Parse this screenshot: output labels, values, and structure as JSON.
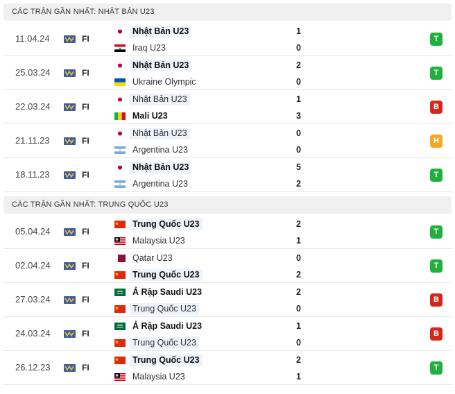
{
  "sections": [
    {
      "title": "CÁC TRẬN GẦN NHẤT: NHẬT BẢN U23",
      "matches": [
        {
          "date": "11.04.24",
          "competition": "FI",
          "home": {
            "name": "Nhật Bản U23",
            "score": 1,
            "highlight": true
          },
          "away": {
            "name": "Iraq U23",
            "score": 0,
            "highlight": false
          },
          "result": {
            "label": "T",
            "color": "#20b13c"
          }
        },
        {
          "date": "25.03.24",
          "competition": "FI",
          "home": {
            "name": "Nhật Bản U23",
            "score": 2,
            "highlight": true
          },
          "away": {
            "name": "Ukraine Olympic",
            "score": 0,
            "highlight": false
          },
          "result": {
            "label": "T",
            "color": "#20b13c"
          }
        },
        {
          "date": "22.03.24",
          "competition": "FI",
          "home": {
            "name": "Nhật Bản U23",
            "score": 1,
            "highlight": true
          },
          "away": {
            "name": "Mali U23",
            "score": 3,
            "highlight": false
          },
          "result": {
            "label": "B",
            "color": "#d6261c"
          }
        },
        {
          "date": "21.11.23",
          "competition": "FI",
          "home": {
            "name": "Nhật Bản U23",
            "score": 0,
            "highlight": true
          },
          "away": {
            "name": "Argentina U23",
            "score": 0,
            "highlight": false
          },
          "result": {
            "label": "H",
            "color": "#f5a623"
          }
        },
        {
          "date": "18.11.23",
          "competition": "FI",
          "home": {
            "name": "Nhật Bản U23",
            "score": 5,
            "highlight": true
          },
          "away": {
            "name": "Argentina U23",
            "score": 2,
            "highlight": false
          },
          "result": {
            "label": "T",
            "color": "#20b13c"
          }
        }
      ]
    },
    {
      "title": "CÁC TRẬN GẦN NHẤT: TRUNG QUỐC U23",
      "matches": [
        {
          "date": "05.04.24",
          "competition": "FI",
          "home": {
            "name": "Trung Quốc U23",
            "score": 2,
            "highlight": true
          },
          "away": {
            "name": "Malaysia U23",
            "score": 1,
            "highlight": false
          },
          "result": {
            "label": "T",
            "color": "#20b13c"
          }
        },
        {
          "date": "02.04.24",
          "competition": "FI",
          "home": {
            "name": "Qatar U23",
            "score": 0,
            "highlight": false
          },
          "away": {
            "name": "Trung Quốc U23",
            "score": 2,
            "highlight": true
          },
          "result": {
            "label": "T",
            "color": "#20b13c"
          }
        },
        {
          "date": "27.03.24",
          "competition": "FI",
          "home": {
            "name": "Ả Rập Saudi U23",
            "score": 2,
            "highlight": false
          },
          "away": {
            "name": "Trung Quốc U23",
            "score": 0,
            "highlight": true
          },
          "result": {
            "label": "B",
            "color": "#d6261c"
          }
        },
        {
          "date": "24.03.24",
          "competition": "FI",
          "home": {
            "name": "Ả Rập Saudi U23",
            "score": 1,
            "highlight": false
          },
          "away": {
            "name": "Trung Quốc U23",
            "score": 0,
            "highlight": true
          },
          "result": {
            "label": "B",
            "color": "#d6261c"
          }
        },
        {
          "date": "26.12.23",
          "competition": "FI",
          "home": {
            "name": "Trung Quốc U23",
            "score": 2,
            "highlight": true
          },
          "away": {
            "name": "Malaysia U23",
            "score": 1,
            "highlight": false
          },
          "result": {
            "label": "T",
            "color": "#20b13c"
          }
        }
      ]
    }
  ]
}
